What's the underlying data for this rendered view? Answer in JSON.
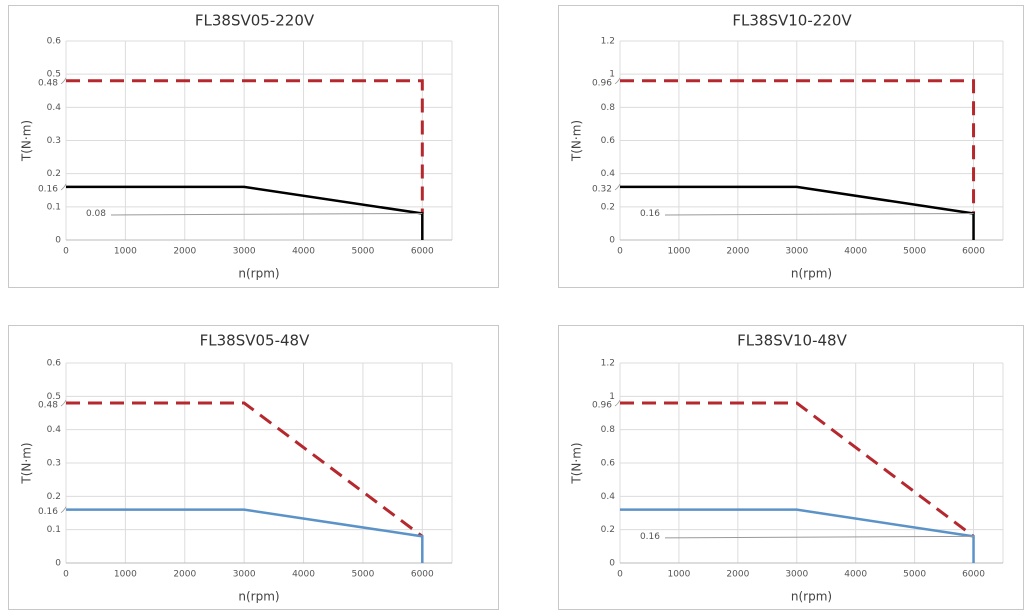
{
  "chart_data": [
    {
      "type": "line",
      "title": "FL38SV05-220V",
      "x_label": "n(rpm)",
      "y_label": "T(N·m)",
      "xlim": [
        0,
        6500
      ],
      "xticks": [
        0,
        1000,
        2000,
        3000,
        4000,
        5000,
        6000
      ],
      "ylim": [
        0,
        0.6
      ],
      "yticks": [
        0,
        0.1,
        0.2,
        0.3,
        0.4,
        0.5,
        0.6
      ],
      "grid": true,
      "series": [
        {
          "color": "#b5282e",
          "dashed": true,
          "x": [
            0,
            3000,
            6000,
            6000
          ],
          "values": [
            0.48,
            0.48,
            0.48,
            0.08
          ]
        },
        {
          "color": "#000000",
          "dashed": false,
          "x": [
            0,
            3000,
            6000,
            6000
          ],
          "values": [
            0.16,
            0.16,
            0.08,
            0
          ]
        }
      ],
      "axis_marks": [
        0.48,
        0.16
      ],
      "leaders": [
        0.08
      ]
    },
    {
      "type": "line",
      "title": "FL38SV10-220V",
      "x_label": "n(rpm)",
      "y_label": "T(N·m)",
      "xlim": [
        0,
        6500
      ],
      "xticks": [
        0,
        1000,
        2000,
        3000,
        4000,
        5000,
        6000
      ],
      "ylim": [
        0,
        1.2
      ],
      "yticks": [
        0,
        0.2,
        0.4,
        0.6,
        0.8,
        1,
        1.2
      ],
      "grid": true,
      "series": [
        {
          "color": "#b5282e",
          "dashed": true,
          "x": [
            0,
            3000,
            6000,
            6000
          ],
          "values": [
            0.96,
            0.96,
            0.96,
            0.16
          ]
        },
        {
          "color": "#000000",
          "dashed": false,
          "x": [
            0,
            3000,
            6000,
            6000
          ],
          "values": [
            0.32,
            0.32,
            0.16,
            0
          ]
        }
      ],
      "axis_marks": [
        0.96,
        0.32
      ],
      "leaders": [
        0.16
      ]
    },
    {
      "type": "line",
      "title": "FL38SV05-48V",
      "x_label": "n(rpm)",
      "y_label": "T(N·m)",
      "xlim": [
        0,
        6500
      ],
      "xticks": [
        0,
        1000,
        2000,
        3000,
        4000,
        5000,
        6000
      ],
      "ylim": [
        0,
        0.6
      ],
      "yticks": [
        0,
        0.1,
        0.2,
        0.3,
        0.4,
        0.5,
        0.6
      ],
      "grid": true,
      "series": [
        {
          "color": "#b5282e",
          "dashed": true,
          "x": [
            0,
            3000,
            6000
          ],
          "values": [
            0.48,
            0.48,
            0.08
          ]
        },
        {
          "color": "#5b93c8",
          "dashed": false,
          "x": [
            0,
            3000,
            6000,
            6000
          ],
          "values": [
            0.16,
            0.16,
            0.08,
            0
          ]
        }
      ],
      "axis_marks": [
        0.48,
        0.16
      ],
      "leaders": []
    },
    {
      "type": "line",
      "title": "FL38SV10-48V",
      "x_label": "n(rpm)",
      "y_label": "T(N·m)",
      "xlim": [
        0,
        6500
      ],
      "xticks": [
        0,
        1000,
        2000,
        3000,
        4000,
        5000,
        6000
      ],
      "ylim": [
        0,
        1.2
      ],
      "yticks": [
        0,
        0.2,
        0.4,
        0.6,
        0.8,
        1,
        1.2
      ],
      "grid": true,
      "series": [
        {
          "color": "#b5282e",
          "dashed": true,
          "x": [
            0,
            3000,
            6000
          ],
          "values": [
            0.96,
            0.96,
            0.16
          ]
        },
        {
          "color": "#5b93c8",
          "dashed": false,
          "x": [
            0,
            3000,
            6000,
            6000
          ],
          "values": [
            0.32,
            0.32,
            0.16,
            0
          ]
        }
      ],
      "axis_marks": [
        0.96
      ],
      "leaders": [
        0.16
      ]
    }
  ]
}
